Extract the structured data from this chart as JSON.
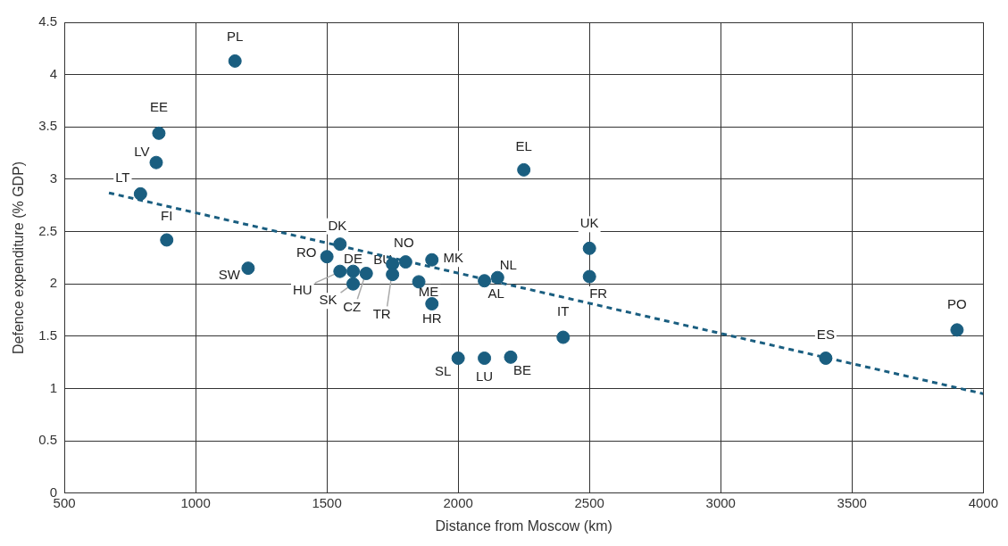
{
  "chart_data": {
    "type": "scatter",
    "xlabel": "Distance from Moscow (km)",
    "ylabel": "Defence expenditure (% GDP)",
    "xlim": [
      500,
      4000
    ],
    "xticks": [
      500,
      1000,
      1500,
      2000,
      2500,
      3000,
      3500,
      4000
    ],
    "ylim": [
      0,
      4.5
    ],
    "yticks": [
      0,
      0.5,
      1,
      1.5,
      2,
      2.5,
      3,
      3.5,
      4,
      4.5
    ],
    "grid": true,
    "legend": false,
    "marker": "circle",
    "series": [
      {
        "color": "#1a5e80",
        "x": [
          1150,
          860,
          850,
          790,
          890,
          1200,
          1550,
          1500,
          1550,
          1600,
          1650,
          1600,
          1750,
          1750,
          1800,
          1900,
          1850,
          1900,
          2100,
          2150,
          2250,
          2500,
          2500,
          2400,
          2000,
          2100,
          2200,
          3400,
          3900
        ],
        "values": [
          4.13,
          3.44,
          3.16,
          2.86,
          2.42,
          2.15,
          2.38,
          2.26,
          2.12,
          2.12,
          2.1,
          2.0,
          2.19,
          2.09,
          2.21,
          2.23,
          2.02,
          1.81,
          2.03,
          2.06,
          3.09,
          2.34,
          2.07,
          1.49,
          1.29,
          1.29,
          1.3,
          1.29,
          1.56
        ]
      },
      {
        "type": "line",
        "color": "#1a5e80",
        "line_style": "dashed",
        "marker": "none",
        "x": [
          670,
          4000
        ],
        "values": [
          2.87,
          0.95
        ]
      }
    ],
    "annotations": [
      {
        "text": "PL",
        "x": 1150,
        "y": 4.13
      },
      {
        "text": "EE",
        "x": 860,
        "y": 3.44
      },
      {
        "text": "LV",
        "x": 850,
        "y": 3.16
      },
      {
        "text": "LT",
        "x": 790,
        "y": 2.86
      },
      {
        "text": "FI",
        "x": 890,
        "y": 2.42
      },
      {
        "text": "SW",
        "x": 1200,
        "y": 2.15
      },
      {
        "text": "DK",
        "x": 1550,
        "y": 2.38
      },
      {
        "text": "RO",
        "x": 1500,
        "y": 2.26
      },
      {
        "text": "HU",
        "x": 1550,
        "y": 2.12
      },
      {
        "text": "DE",
        "x": 1600,
        "y": 2.12
      },
      {
        "text": "CZ",
        "x": 1650,
        "y": 2.1
      },
      {
        "text": "SK",
        "x": 1600,
        "y": 2.0
      },
      {
        "text": "BU",
        "x": 1750,
        "y": 2.19
      },
      {
        "text": "TR",
        "x": 1750,
        "y": 2.09
      },
      {
        "text": "NO",
        "x": 1800,
        "y": 2.21
      },
      {
        "text": "MK",
        "x": 1900,
        "y": 2.23
      },
      {
        "text": "ME",
        "x": 1850,
        "y": 2.02
      },
      {
        "text": "HR",
        "x": 1900,
        "y": 1.81
      },
      {
        "text": "AL",
        "x": 2100,
        "y": 2.03
      },
      {
        "text": "NL",
        "x": 2150,
        "y": 2.06
      },
      {
        "text": "EL",
        "x": 2250,
        "y": 3.09
      },
      {
        "text": "UK",
        "x": 2500,
        "y": 2.34
      },
      {
        "text": "FR",
        "x": 2500,
        "y": 2.07
      },
      {
        "text": "IT",
        "x": 2400,
        "y": 1.49
      },
      {
        "text": "SL",
        "x": 2000,
        "y": 1.29
      },
      {
        "text": "LU",
        "x": 2100,
        "y": 1.29
      },
      {
        "text": "BE",
        "x": 2200,
        "y": 1.3
      },
      {
        "text": "ES",
        "x": 3400,
        "y": 1.29
      },
      {
        "text": "PO",
        "x": 3900,
        "y": 1.56
      }
    ]
  }
}
